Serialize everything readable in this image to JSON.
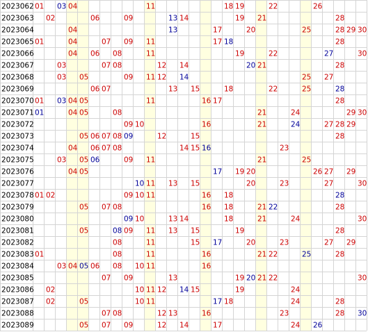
{
  "rows": [
    {
      "issue": "2023062",
      "numbers": [
        {
          "text": "01",
          "color": "#cc0000"
        },
        {
          "text": "03",
          "color": "#000099"
        },
        {
          "text": "04",
          "color": "#cc0000"
        },
        {
          "text": "11",
          "color": "#cc0000"
        },
        {
          "text": "18",
          "color": "#cc0000"
        },
        {
          "text": "19",
          "color": "#cc0000"
        },
        {
          "text": "22",
          "color": "#cc0000"
        },
        {
          "text": "26",
          "color": "#cc0000"
        }
      ]
    },
    {
      "issue": "2023063",
      "numbers": [
        {
          "text": "02",
          "color": "#cc0000"
        },
        {
          "text": "06",
          "color": "#cc0000"
        },
        {
          "text": "09",
          "color": "#cc0000"
        },
        {
          "text": "13",
          "color": "#000099"
        },
        {
          "text": "14",
          "color": "#cc0000"
        },
        {
          "text": "19",
          "color": "#cc0000"
        },
        {
          "text": "21",
          "color": "#cc0000"
        },
        {
          "text": "28",
          "color": "#cc0000"
        }
      ]
    },
    {
      "issue": "2023064",
      "numbers": [
        {
          "text": "04",
          "color": "#cc0000"
        },
        {
          "text": "13",
          "color": "#000099"
        },
        {
          "text": "17",
          "color": "#cc0000"
        },
        {
          "text": "20",
          "color": "#cc0000"
        },
        {
          "text": "25",
          "color": "#cc0000"
        },
        {
          "text": "28",
          "color": "#cc0000"
        },
        {
          "text": "29",
          "color": "#cc0000"
        },
        {
          "text": "30",
          "color": "#cc0000"
        }
      ]
    },
    {
      "issue": "2023065",
      "numbers": [
        {
          "text": "01",
          "color": "#cc0000"
        },
        {
          "text": "04",
          "color": "#cc0000"
        },
        {
          "text": "07",
          "color": "#cc0000"
        },
        {
          "text": "09",
          "color": "#cc0000"
        },
        {
          "text": "11",
          "color": "#cc0000"
        },
        {
          "text": "17",
          "color": "#cc0000"
        },
        {
          "text": "18",
          "color": "#000099"
        },
        {
          "text": "28",
          "color": "#cc0000"
        }
      ]
    },
    {
      "issue": "2023066",
      "numbers": [
        {
          "text": "04",
          "color": "#cc0000"
        },
        {
          "text": "06",
          "color": "#cc0000"
        },
        {
          "text": "08",
          "color": "#cc0000"
        },
        {
          "text": "11",
          "color": "#cc0000"
        },
        {
          "text": "19",
          "color": "#cc0000"
        },
        {
          "text": "22",
          "color": "#cc0000"
        },
        {
          "text": "27",
          "color": "#000099"
        },
        {
          "text": "30",
          "color": "#cc0000"
        }
      ]
    },
    {
      "issue": "2023067",
      "numbers": [
        {
          "text": "03",
          "color": "#cc0000"
        },
        {
          "text": "07",
          "color": "#cc0000"
        },
        {
          "text": "08",
          "color": "#cc0000"
        },
        {
          "text": "12",
          "color": "#cc0000"
        },
        {
          "text": "14",
          "color": "#cc0000"
        },
        {
          "text": "20",
          "color": "#000099"
        },
        {
          "text": "21",
          "color": "#cc0000"
        },
        {
          "text": "28",
          "color": "#cc0000"
        }
      ]
    },
    {
      "issue": "2023068",
      "numbers": [
        {
          "text": "03",
          "color": "#cc0000"
        },
        {
          "text": "05",
          "color": "#cc0000"
        },
        {
          "text": "09",
          "color": "#cc0000"
        },
        {
          "text": "11",
          "color": "#cc0000"
        },
        {
          "text": "12",
          "color": "#cc0000"
        },
        {
          "text": "14",
          "color": "#000099"
        },
        {
          "text": "25",
          "color": "#cc0000"
        },
        {
          "text": "27",
          "color": "#cc0000"
        }
      ]
    },
    {
      "issue": "2023069",
      "numbers": [
        {
          "text": "06",
          "color": "#cc0000"
        },
        {
          "text": "07",
          "color": "#cc0000"
        },
        {
          "text": "13",
          "color": "#cc0000"
        },
        {
          "text": "15",
          "color": "#cc0000"
        },
        {
          "text": "18",
          "color": "#cc0000"
        },
        {
          "text": "22",
          "color": "#cc0000"
        },
        {
          "text": "25",
          "color": "#cc0000"
        },
        {
          "text": "28",
          "color": "#000099"
        }
      ]
    },
    {
      "issue": "2023070",
      "numbers": [
        {
          "text": "01",
          "color": "#cc0000"
        },
        {
          "text": "03",
          "color": "#000099"
        },
        {
          "text": "04",
          "color": "#cc0000"
        },
        {
          "text": "05",
          "color": "#cc0000"
        },
        {
          "text": "11",
          "color": "#cc0000"
        },
        {
          "text": "16",
          "color": "#cc0000"
        },
        {
          "text": "17",
          "color": "#cc0000"
        },
        {
          "text": "28",
          "color": "#cc0000"
        }
      ]
    },
    {
      "issue": "2023071",
      "numbers": [
        {
          "text": "01",
          "color": "#000099"
        },
        {
          "text": "04",
          "color": "#cc0000"
        },
        {
          "text": "05",
          "color": "#cc0000"
        },
        {
          "text": "08",
          "color": "#cc0000"
        },
        {
          "text": "21",
          "color": "#cc0000"
        },
        {
          "text": "24",
          "color": "#cc0000"
        },
        {
          "text": "29",
          "color": "#cc0000"
        },
        {
          "text": "30",
          "color": "#cc0000"
        }
      ]
    },
    {
      "issue": "2023072",
      "numbers": [
        {
          "text": "09",
          "color": "#cc0000"
        },
        {
          "text": "10",
          "color": "#cc0000"
        },
        {
          "text": "16",
          "color": "#cc0000"
        },
        {
          "text": "21",
          "color": "#cc0000"
        },
        {
          "text": "24",
          "color": "#000099"
        },
        {
          "text": "27",
          "color": "#cc0000"
        },
        {
          "text": "28",
          "color": "#cc0000"
        },
        {
          "text": "29",
          "color": "#cc0000"
        }
      ]
    },
    {
      "issue": "2023073",
      "numbers": [
        {
          "text": "05",
          "color": "#cc0000"
        },
        {
          "text": "06",
          "color": "#cc0000"
        },
        {
          "text": "07",
          "color": "#cc0000"
        },
        {
          "text": "08",
          "color": "#cc0000"
        },
        {
          "text": "09",
          "color": "#000099"
        },
        {
          "text": "12",
          "color": "#cc0000"
        },
        {
          "text": "15",
          "color": "#cc0000"
        },
        {
          "text": "28",
          "color": "#cc0000"
        }
      ]
    },
    {
      "issue": "2023074",
      "numbers": [
        {
          "text": "04",
          "color": "#cc0000"
        },
        {
          "text": "06",
          "color": "#cc0000"
        },
        {
          "text": "07",
          "color": "#cc0000"
        },
        {
          "text": "08",
          "color": "#cc0000"
        },
        {
          "text": "14",
          "color": "#cc0000"
        },
        {
          "text": "15",
          "color": "#cc0000"
        },
        {
          "text": "16",
          "color": "#000099"
        },
        {
          "text": "23",
          "color": "#cc0000"
        }
      ]
    },
    {
      "issue": "2023075",
      "numbers": [
        {
          "text": "03",
          "color": "#cc0000"
        },
        {
          "text": "05",
          "color": "#cc0000"
        },
        {
          "text": "06",
          "color": "#000099"
        },
        {
          "text": "09",
          "color": "#cc0000"
        },
        {
          "text": "11",
          "color": "#cc0000"
        },
        {
          "text": "21",
          "color": "#cc0000"
        },
        {
          "text": "25",
          "color": "#cc0000"
        }
      ]
    },
    {
      "issue": "2023076",
      "numbers": [
        {
          "text": "04",
          "color": "#cc0000"
        },
        {
          "text": "05",
          "color": "#cc0000"
        },
        {
          "text": "17",
          "color": "#000099"
        },
        {
          "text": "19",
          "color": "#cc0000"
        },
        {
          "text": "20",
          "color": "#cc0000"
        },
        {
          "text": "26",
          "color": "#cc0000"
        },
        {
          "text": "27",
          "color": "#cc0000"
        },
        {
          "text": "29",
          "color": "#cc0000"
        }
      ]
    },
    {
      "issue": "2023077",
      "numbers": [
        {
          "text": "10",
          "color": "#000099"
        },
        {
          "text": "11",
          "color": "#cc0000"
        },
        {
          "text": "13",
          "color": "#cc0000"
        },
        {
          "text": "15",
          "color": "#cc0000"
        },
        {
          "text": "20",
          "color": "#cc0000"
        },
        {
          "text": "23",
          "color": "#cc0000"
        },
        {
          "text": "27",
          "color": "#cc0000"
        },
        {
          "text": "30",
          "color": "#cc0000"
        }
      ]
    },
    {
      "issue": "2023078",
      "numbers": [
        {
          "text": "01",
          "color": "#cc0000"
        },
        {
          "text": "02",
          "color": "#cc0000"
        },
        {
          "text": "09",
          "color": "#cc0000"
        },
        {
          "text": "10",
          "color": "#cc0000"
        },
        {
          "text": "11",
          "color": "#cc0000"
        },
        {
          "text": "16",
          "color": "#cc0000"
        },
        {
          "text": "18",
          "color": "#cc0000"
        },
        {
          "text": "28",
          "color": "#000099"
        }
      ]
    },
    {
      "issue": "2023079",
      "numbers": [
        {
          "text": "05",
          "color": "#cc0000"
        },
        {
          "text": "07",
          "color": "#cc0000"
        },
        {
          "text": "08",
          "color": "#cc0000"
        },
        {
          "text": "16",
          "color": "#cc0000"
        },
        {
          "text": "18",
          "color": "#cc0000"
        },
        {
          "text": "21",
          "color": "#cc0000"
        },
        {
          "text": "22",
          "color": "#000099"
        },
        {
          "text": "28",
          "color": "#cc0000"
        }
      ]
    },
    {
      "issue": "2023080",
      "numbers": [
        {
          "text": "09",
          "color": "#000099"
        },
        {
          "text": "10",
          "color": "#cc0000"
        },
        {
          "text": "13",
          "color": "#cc0000"
        },
        {
          "text": "14",
          "color": "#cc0000"
        },
        {
          "text": "18",
          "color": "#cc0000"
        },
        {
          "text": "21",
          "color": "#cc0000"
        },
        {
          "text": "24",
          "color": "#cc0000"
        },
        {
          "text": "30",
          "color": "#cc0000"
        }
      ]
    },
    {
      "issue": "2023081",
      "numbers": [
        {
          "text": "05",
          "color": "#cc0000"
        },
        {
          "text": "08",
          "color": "#000099"
        },
        {
          "text": "09",
          "color": "#cc0000"
        },
        {
          "text": "11",
          "color": "#cc0000"
        },
        {
          "text": "13",
          "color": "#cc0000"
        },
        {
          "text": "15",
          "color": "#cc0000"
        },
        {
          "text": "19",
          "color": "#cc0000"
        },
        {
          "text": "28",
          "color": "#cc0000"
        }
      ]
    },
    {
      "issue": "2023082",
      "numbers": [
        {
          "text": "08",
          "color": "#cc0000"
        },
        {
          "text": "11",
          "color": "#cc0000"
        },
        {
          "text": "15",
          "color": "#cc0000"
        },
        {
          "text": "17",
          "color": "#000099"
        },
        {
          "text": "20",
          "color": "#cc0000"
        },
        {
          "text": "23",
          "color": "#cc0000"
        },
        {
          "text": "27",
          "color": "#cc0000"
        },
        {
          "text": "29",
          "color": "#cc0000"
        }
      ]
    },
    {
      "issue": "2023083",
      "numbers": [
        {
          "text": "01",
          "color": "#cc0000"
        },
        {
          "text": "08",
          "color": "#cc0000"
        },
        {
          "text": "11",
          "color": "#cc0000"
        },
        {
          "text": "16",
          "color": "#cc0000"
        },
        {
          "text": "21",
          "color": "#cc0000"
        },
        {
          "text": "22",
          "color": "#cc0000"
        },
        {
          "text": "25",
          "color": "#000099"
        },
        {
          "text": "28",
          "color": "#cc0000"
        }
      ]
    },
    {
      "issue": "2023084",
      "numbers": [
        {
          "text": "03",
          "color": "#cc0000"
        },
        {
          "text": "04",
          "color": "#cc0000"
        },
        {
          "text": "05",
          "color": "#000099"
        },
        {
          "text": "06",
          "color": "#cc0000"
        },
        {
          "text": "08",
          "color": "#cc0000"
        },
        {
          "text": "10",
          "color": "#cc0000"
        },
        {
          "text": "11",
          "color": "#cc0000"
        },
        {
          "text": "16",
          "color": "#cc0000"
        }
      ]
    },
    {
      "issue": "2023085",
      "numbers": [
        {
          "text": "07",
          "color": "#cc0000"
        },
        {
          "text": "09",
          "color": "#cc0000"
        },
        {
          "text": "13",
          "color": "#cc0000"
        },
        {
          "text": "19",
          "color": "#cc0000"
        },
        {
          "text": "20",
          "color": "#000099"
        },
        {
          "text": "21",
          "color": "#cc0000"
        },
        {
          "text": "22",
          "color": "#cc0000"
        },
        {
          "text": "30",
          "color": "#cc0000"
        }
      ]
    },
    {
      "issue": "2023086",
      "numbers": [
        {
          "text": "02",
          "color": "#cc0000"
        },
        {
          "text": "10",
          "color": "#cc0000"
        },
        {
          "text": "11",
          "color": "#cc0000"
        },
        {
          "text": "12",
          "color": "#cc0000"
        },
        {
          "text": "14",
          "color": "#000099"
        },
        {
          "text": "15",
          "color": "#cc0000"
        },
        {
          "text": "19",
          "color": "#cc0000"
        },
        {
          "text": "24",
          "color": "#cc0000"
        }
      ]
    },
    {
      "issue": "2023087",
      "numbers": [
        {
          "text": "02",
          "color": "#cc0000"
        },
        {
          "text": "05",
          "color": "#cc0000"
        },
        {
          "text": "10",
          "color": "#cc0000"
        },
        {
          "text": "11",
          "color": "#cc0000"
        },
        {
          "text": "17",
          "color": "#000099"
        },
        {
          "text": "18",
          "color": "#cc0000"
        },
        {
          "text": "24",
          "color": "#cc0000"
        },
        {
          "text": "28",
          "color": "#cc0000"
        }
      ]
    },
    {
      "issue": "2023088",
      "numbers": [
        {
          "text": "07",
          "color": "#cc0000"
        },
        {
          "text": "08",
          "color": "#cc0000"
        },
        {
          "text": "12",
          "color": "#cc0000"
        },
        {
          "text": "13",
          "color": "#cc0000"
        },
        {
          "text": "16",
          "color": "#cc0000"
        },
        {
          "text": "23",
          "color": "#cc0000"
        },
        {
          "text": "28",
          "color": "#cc0000"
        },
        {
          "text": "30",
          "color": "#000099"
        }
      ]
    },
    {
      "issue": "2023089",
      "numbers": [
        {
          "text": "05",
          "color": "#cc0000"
        },
        {
          "text": "07",
          "color": "#cc0000"
        },
        {
          "text": "09",
          "color": "#cc0000"
        },
        {
          "text": "12",
          "color": "#cc0000"
        },
        {
          "text": "14",
          "color": "#cc0000"
        },
        {
          "text": "17",
          "color": "#cc0000"
        },
        {
          "text": "24",
          "color": "#cc0000"
        },
        {
          "text": "26",
          "color": "#000099"
        }
      ]
    }
  ]
}
